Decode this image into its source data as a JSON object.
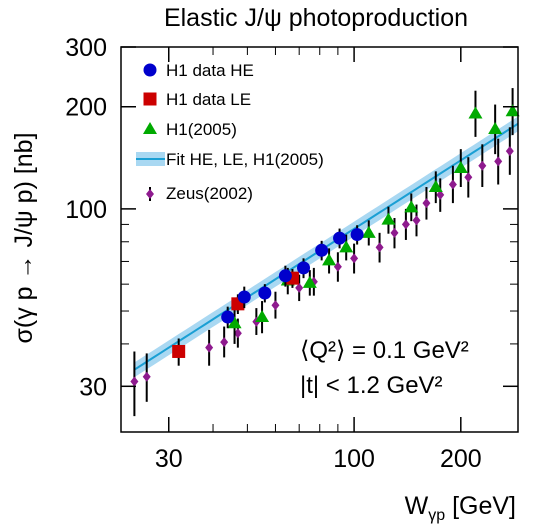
{
  "chart_data": {
    "type": "scatter",
    "title": "Elastic J/ψ photoproduction",
    "ylabel": "σ(γ p → J/ψ p) [nb]",
    "xlabel_main": "W",
    "xlabel_sub": "γp",
    "xlabel_unit": " [GeV]",
    "x_scale": "log",
    "y_scale": "log",
    "xlim": [
      22,
      290
    ],
    "ylim": [
      22,
      300
    ],
    "x_ticks": [
      {
        "value": 30,
        "label": "30"
      },
      {
        "value": 100,
        "label": "100"
      },
      {
        "value": 200,
        "label": "200"
      }
    ],
    "y_ticks": [
      {
        "value": 30,
        "label": "30"
      },
      {
        "value": 100,
        "label": "100"
      },
      {
        "value": 200,
        "label": "200"
      },
      {
        "value": 300,
        "label": "300"
      }
    ],
    "legend_position": "top-left",
    "series": [
      {
        "name": "H1 data HE",
        "marker": "circle",
        "color": "#0000cc",
        "points": [
          {
            "x": 44.0,
            "y": 48.0,
            "lo": 44.5,
            "hi": 51.5
          },
          {
            "x": 49.0,
            "y": 55.0,
            "lo": 51.0,
            "hi": 59.0
          },
          {
            "x": 56.0,
            "y": 56.5,
            "lo": 53.0,
            "hi": 60.0
          },
          {
            "x": 64.0,
            "y": 63.5,
            "lo": 59.0,
            "hi": 68.0
          },
          {
            "x": 72.0,
            "y": 67.0,
            "lo": 62.5,
            "hi": 71.5
          },
          {
            "x": 81.0,
            "y": 75.5,
            "lo": 70.5,
            "hi": 80.5
          },
          {
            "x": 91.0,
            "y": 82.0,
            "lo": 76.5,
            "hi": 87.5
          },
          {
            "x": 102.0,
            "y": 84.0,
            "lo": 78.5,
            "hi": 89.5
          }
        ]
      },
      {
        "name": "H1 data LE",
        "marker": "square",
        "color": "#cc0000",
        "points": [
          {
            "x": 32.0,
            "y": 38.0,
            "lo": 34.5,
            "hi": 41.5
          },
          {
            "x": 47.0,
            "y": 52.5,
            "lo": 49.0,
            "hi": 56.0
          },
          {
            "x": 67.0,
            "y": 62.5,
            "lo": 58.5,
            "hi": 66.5
          }
        ]
      },
      {
        "name": "H1(2005)",
        "marker": "triangle",
        "color": "#00aa00",
        "points": [
          {
            "x": 46.0,
            "y": 46.0,
            "lo": 40.0,
            "hi": 52.0
          },
          {
            "x": 55.0,
            "y": 48.0,
            "lo": 43.0,
            "hi": 53.5
          },
          {
            "x": 65.0,
            "y": 61.5,
            "lo": 56.0,
            "hi": 67.0
          },
          {
            "x": 75.0,
            "y": 60.5,
            "lo": 55.5,
            "hi": 66.0
          },
          {
            "x": 85.0,
            "y": 70.5,
            "lo": 64.5,
            "hi": 76.5
          },
          {
            "x": 95.0,
            "y": 77.0,
            "lo": 70.5,
            "hi": 84.0
          },
          {
            "x": 110.0,
            "y": 85.0,
            "lo": 78.0,
            "hi": 92.5
          },
          {
            "x": 125.0,
            "y": 93.0,
            "lo": 84.5,
            "hi": 101.5
          },
          {
            "x": 145.0,
            "y": 101.0,
            "lo": 92.0,
            "hi": 111.0
          },
          {
            "x": 170.0,
            "y": 116.0,
            "lo": 104.0,
            "hi": 129.0
          },
          {
            "x": 200.0,
            "y": 132.0,
            "lo": 116.0,
            "hi": 150.0
          },
          {
            "x": 220.0,
            "y": 191.0,
            "lo": 163.0,
            "hi": 223.0
          },
          {
            "x": 250.0,
            "y": 172.0,
            "lo": 145.0,
            "hi": 203.0
          },
          {
            "x": 280.0,
            "y": 194.0,
            "lo": 165.0,
            "hi": 227.0
          }
        ]
      },
      {
        "name": "Zeus(2002)",
        "marker": "diamond",
        "color": "#8e1a8e",
        "points": [
          {
            "x": 24.0,
            "y": 31.0,
            "lo": 24.5,
            "hi": 38.0
          },
          {
            "x": 26.0,
            "y": 32.0,
            "lo": 27.0,
            "hi": 37.5
          },
          {
            "x": 39.0,
            "y": 39.0,
            "lo": 34.5,
            "hi": 44.0
          },
          {
            "x": 43.0,
            "y": 40.5,
            "lo": 36.5,
            "hi": 45.0
          },
          {
            "x": 47.0,
            "y": 43.0,
            "lo": 39.0,
            "hi": 47.5
          },
          {
            "x": 53.0,
            "y": 46.5,
            "lo": 42.5,
            "hi": 51.0
          },
          {
            "x": 60.0,
            "y": 52.0,
            "lo": 47.5,
            "hi": 57.0
          },
          {
            "x": 70.0,
            "y": 58.5,
            "lo": 53.5,
            "hi": 64.0
          },
          {
            "x": 77.0,
            "y": 61.0,
            "lo": 55.5,
            "hi": 67.0
          },
          {
            "x": 90.0,
            "y": 67.5,
            "lo": 61.0,
            "hi": 74.5
          },
          {
            "x": 100.0,
            "y": 71.5,
            "lo": 64.5,
            "hi": 79.0
          },
          {
            "x": 118.0,
            "y": 77.0,
            "lo": 69.5,
            "hi": 85.0
          },
          {
            "x": 130.0,
            "y": 85.0,
            "lo": 76.5,
            "hi": 94.0
          },
          {
            "x": 140.0,
            "y": 90.0,
            "lo": 81.0,
            "hi": 100.0
          },
          {
            "x": 150.0,
            "y": 92.5,
            "lo": 83.0,
            "hi": 103.0
          },
          {
            "x": 160.0,
            "y": 104.0,
            "lo": 93.0,
            "hi": 116.0
          },
          {
            "x": 175.0,
            "y": 110.0,
            "lo": 98.0,
            "hi": 123.0
          },
          {
            "x": 190.0,
            "y": 118.0,
            "lo": 104.0,
            "hi": 134.0
          },
          {
            "x": 210.0,
            "y": 124.0,
            "lo": 108.0,
            "hi": 142.0
          },
          {
            "x": 230.0,
            "y": 134.0,
            "lo": 116.0,
            "hi": 155.0
          },
          {
            "x": 255.0,
            "y": 138.0,
            "lo": 118.0,
            "hi": 161.0
          },
          {
            "x": 275.0,
            "y": 148.0,
            "lo": 126.0,
            "hi": 174.0
          }
        ]
      }
    ],
    "fit": {
      "name": "Fit HE, LE, H1(2005)",
      "line_color": "#1a9fd4",
      "band_color": "#a9d8f2",
      "x_from": 24,
      "x_to": 290,
      "norm": 81.4,
      "w0": 90,
      "exponent": 0.67,
      "band_fraction": 0.05
    },
    "annotation_lines": [
      "⟨Q²⟩ = 0.1 GeV²",
      "|t| < 1.2 GeV²"
    ]
  }
}
